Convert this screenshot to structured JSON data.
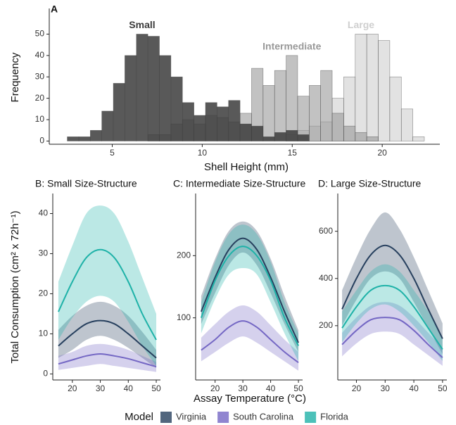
{
  "chart_data": [
    {
      "type": "histogram",
      "title": "A",
      "x_label": "Shell Height (mm)",
      "y_label": "Frequency",
      "bins": [
        2.5,
        3.14,
        3.78,
        4.42,
        5.06,
        5.7,
        6.34,
        6.98,
        7.62,
        8.26,
        8.9,
        9.54,
        10.18,
        10.82,
        11.46,
        12.1,
        12.74,
        13.38,
        14.02,
        14.66,
        15.3,
        15.94,
        16.58,
        17.22,
        17.86,
        18.5,
        19.14,
        19.78,
        20.42,
        21.06,
        21.7,
        22.34
      ],
      "series": [
        {
          "name": "Large",
          "color": "#cfcfcf",
          "values": [
            0,
            0,
            0,
            0,
            0,
            0,
            0,
            0,
            0,
            0,
            0,
            0,
            0,
            0,
            0,
            0,
            0,
            0,
            0,
            3,
            5,
            7,
            9,
            20,
            30,
            50,
            50,
            47,
            30,
            15,
            2
          ]
        },
        {
          "name": "Intermediate",
          "color": "#9a9a9a",
          "values": [
            0,
            0,
            0,
            0,
            0,
            0,
            0,
            3,
            3,
            8,
            10,
            8,
            12,
            11,
            9,
            13,
            34,
            26,
            33,
            40,
            21,
            26,
            33,
            13,
            7,
            4,
            2,
            0,
            0,
            0,
            0
          ]
        },
        {
          "name": "Small",
          "color": "#3c3c3c",
          "values": [
            2,
            2,
            5,
            14,
            27,
            40,
            50,
            49,
            40,
            30,
            18,
            12,
            18,
            16,
            19,
            8,
            7,
            2,
            4,
            5,
            3,
            0,
            0,
            0,
            0,
            0,
            0,
            0,
            0,
            0,
            0
          ]
        }
      ],
      "xlim": [
        1.5,
        23.2
      ],
      "xticks": [
        5,
        10,
        15,
        20
      ],
      "ylim": [
        -1.5,
        62
      ],
      "yticks": [
        0,
        10,
        20,
        30,
        40,
        50
      ]
    },
    {
      "type": "line",
      "title": "B: Small Size-Structure",
      "y_label": "Total Consumption (cm² x 72h⁻¹)",
      "x": [
        15,
        20,
        25,
        30,
        35,
        40,
        45,
        50
      ],
      "series": [
        {
          "name": "Virginia",
          "color": "#27405e",
          "values": [
            7,
            10,
            12.5,
            13.3,
            12.5,
            10,
            7,
            4
          ],
          "lower": [
            4,
            6,
            8.5,
            9.5,
            8.5,
            6.5,
            4,
            1.5
          ],
          "upper": [
            11,
            14.5,
            17,
            18,
            17,
            14.5,
            10.5,
            6
          ]
        },
        {
          "name": "South Carolina",
          "color": "#7467c4",
          "values": [
            2.5,
            3.5,
            4.5,
            5,
            4.5,
            3.8,
            2.8,
            1.8
          ],
          "lower": [
            1,
            1.5,
            2,
            2.5,
            2,
            1.5,
            1,
            0.5
          ],
          "upper": [
            4.5,
            5.5,
            7,
            7.5,
            7,
            6,
            4.5,
            3
          ]
        },
        {
          "name": "Florida",
          "color": "#1fb2a8",
          "values": [
            15.5,
            23,
            29,
            31,
            29,
            23,
            15,
            8.5
          ],
          "lower": [
            8.5,
            14,
            18,
            19.5,
            18,
            13,
            7,
            2
          ],
          "upper": [
            23,
            32,
            40,
            42,
            40,
            33,
            24,
            15
          ]
        }
      ],
      "xlim": [
        13,
        51.5
      ],
      "xticks": [
        20,
        30,
        40,
        50
      ],
      "ylim": [
        -1.5,
        45
      ],
      "yticks": [
        0,
        10,
        20,
        30,
        40
      ]
    },
    {
      "type": "line",
      "title": "C: Intermediate Size-Structure",
      "x_label": "Assay Temperature (°C)",
      "x": [
        15,
        20,
        25,
        30,
        35,
        40,
        45,
        50
      ],
      "series": [
        {
          "name": "Virginia",
          "color": "#27405e",
          "values": [
            110,
            165,
            210,
            228,
            210,
            165,
            110,
            60
          ],
          "lower": [
            90,
            140,
            185,
            205,
            185,
            140,
            90,
            45
          ],
          "upper": [
            135,
            195,
            240,
            255,
            240,
            195,
            135,
            80
          ]
        },
        {
          "name": "South Carolina",
          "color": "#7467c4",
          "values": [
            48,
            65,
            85,
            95,
            85,
            65,
            45,
            28
          ],
          "lower": [
            30,
            45,
            60,
            70,
            60,
            45,
            30,
            15
          ],
          "upper": [
            68,
            90,
            110,
            120,
            110,
            88,
            65,
            45
          ]
        },
        {
          "name": "Florida",
          "color": "#1fb2a8",
          "values": [
            100,
            160,
            200,
            215,
            200,
            160,
            100,
            55
          ],
          "lower": [
            75,
            130,
            170,
            180,
            170,
            125,
            75,
            30
          ],
          "upper": [
            125,
            190,
            235,
            250,
            235,
            190,
            125,
            75
          ]
        }
      ],
      "xlim": [
        13,
        51.5
      ],
      "xticks": [
        20,
        30,
        40,
        50
      ],
      "ylim": [
        0,
        300
      ],
      "yticks": [
        100,
        200
      ]
    },
    {
      "type": "line",
      "title": "D: Large Size-Structure",
      "x": [
        15,
        20,
        25,
        30,
        35,
        40,
        45,
        50
      ],
      "series": [
        {
          "name": "Virginia",
          "color": "#27405e",
          "values": [
            270,
            400,
            500,
            540,
            500,
            400,
            270,
            145
          ],
          "lower": [
            200,
            310,
            400,
            430,
            400,
            300,
            190,
            80
          ],
          "upper": [
            350,
            490,
            610,
            680,
            610,
            490,
            350,
            210
          ]
        },
        {
          "name": "South Carolina",
          "color": "#7467c4",
          "values": [
            120,
            180,
            225,
            235,
            225,
            180,
            120,
            65
          ],
          "lower": [
            70,
            125,
            165,
            175,
            165,
            120,
            75,
            30
          ],
          "upper": [
            170,
            235,
            285,
            300,
            285,
            235,
            170,
            105
          ]
        },
        {
          "name": "Florida",
          "color": "#1fb2a8",
          "values": [
            190,
            280,
            350,
            370,
            350,
            280,
            190,
            100
          ],
          "lower": [
            130,
            210,
            270,
            290,
            260,
            200,
            130,
            50
          ],
          "upper": [
            260,
            350,
            430,
            460,
            430,
            350,
            260,
            150
          ]
        }
      ],
      "xlim": [
        13.5,
        51.5
      ],
      "xticks": [
        20,
        30,
        40,
        50
      ],
      "ylim": [
        -30,
        760
      ],
      "yticks": [
        200,
        400,
        600
      ]
    }
  ],
  "legend": {
    "title": "Model"
  }
}
